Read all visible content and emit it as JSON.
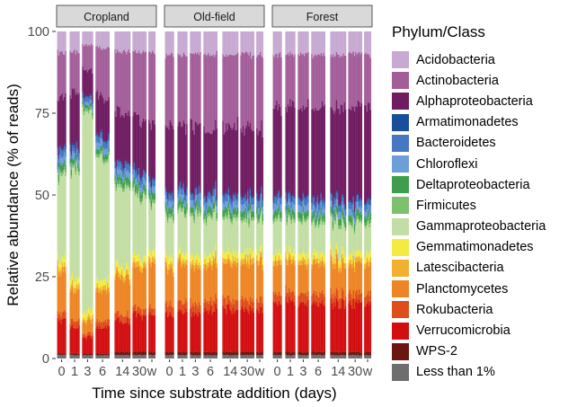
{
  "chart_data": {
    "type": "bar",
    "stacked": true,
    "facets": [
      "Cropland",
      "Old-field",
      "Forest"
    ],
    "xlabel": "Time since substrate addition (days)",
    "ylabel": "Relative abundance (% of reads)",
    "ylim": [
      0,
      100
    ],
    "yticks": [
      "0",
      "25",
      "50",
      "75",
      "100"
    ],
    "xtick_labels": [
      "0",
      "1",
      "3",
      "6",
      "14",
      "30",
      "w"
    ],
    "legend_title": "Phylum/Class",
    "legend_position": "right",
    "series": [
      {
        "name": "Acidobacteria",
        "color": "#C7A9D1"
      },
      {
        "name": "Actinobacteria",
        "color": "#A35E9A"
      },
      {
        "name": "Alphaproteobacteria",
        "color": "#701C62"
      },
      {
        "name": "Armatimonadetes",
        "color": "#1A4E9A"
      },
      {
        "name": "Bacteroidetes",
        "color": "#4577C3"
      },
      {
        "name": "Chloroflexi",
        "color": "#6D9ED9"
      },
      {
        "name": "Deltaproteobacteria",
        "color": "#3E9E4C"
      },
      {
        "name": "Firmicutes",
        "color": "#7DC06E"
      },
      {
        "name": "Gammaproteobacteria",
        "color": "#C3DEA4"
      },
      {
        "name": "Gemmatimonadetes",
        "color": "#F4EB42"
      },
      {
        "name": "Latescibacteria",
        "color": "#F1B12E"
      },
      {
        "name": "Planctomycetes",
        "color": "#EE8524"
      },
      {
        "name": "Rokubacteria",
        "color": "#DF4D1B"
      },
      {
        "name": "Verrucomicrobia",
        "color": "#D30E10"
      },
      {
        "name": "WPS-2",
        "color": "#6A1611"
      },
      {
        "name": "Less than 1%",
        "color": "#6E6E6E"
      }
    ],
    "groups": [
      {
        "facet": "Cropland",
        "time": "0",
        "values": [
          6,
          13,
          15,
          0.5,
          2,
          2,
          2,
          1,
          24,
          2,
          1.5,
          12,
          2,
          9,
          0.5,
          1
        ]
      },
      {
        "facet": "Cropland",
        "time": "1",
        "values": [
          6,
          12,
          16,
          0.5,
          2,
          2,
          1.5,
          1,
          32,
          2,
          1.5,
          9,
          2,
          8,
          0.5,
          1
        ]
      },
      {
        "facet": "Cropland",
        "time": "3",
        "values": [
          4,
          8,
          8,
          0.5,
          1.5,
          1,
          1,
          1,
          60,
          2,
          1,
          4,
          1,
          5,
          0.5,
          1
        ]
      },
      {
        "facet": "Cropland",
        "time": "6",
        "values": [
          5,
          15,
          12,
          0.5,
          2,
          2,
          1.5,
          1,
          36,
          2,
          1.5,
          9,
          2,
          8,
          0.5,
          1
        ]
      },
      {
        "facet": "Cropland",
        "time": "14",
        "values": [
          6,
          18,
          15,
          0.5,
          2,
          2,
          2,
          1,
          24,
          2,
          1.5,
          11,
          2,
          9,
          1,
          1
        ]
      },
      {
        "facet": "Cropland",
        "time": "30",
        "values": [
          6,
          20,
          16,
          0.5,
          2,
          2,
          2,
          1,
          18,
          2,
          1.5,
          12,
          2,
          11,
          1,
          1
        ]
      },
      {
        "facet": "Cropland",
        "time": "w",
        "values": [
          6,
          21,
          17,
          0.5,
          2,
          2,
          2,
          1,
          15,
          2,
          1.5,
          13,
          2,
          11,
          1,
          1
        ]
      },
      {
        "facet": "Old-field",
        "time": "0",
        "values": [
          7,
          21,
          20,
          0.5,
          2,
          2,
          2,
          1,
          12,
          2,
          1.5,
          11,
          3,
          12,
          1,
          1
        ]
      },
      {
        "facet": "Old-field",
        "time": "1",
        "values": [
          7,
          22,
          19,
          0.5,
          2,
          2,
          2,
          1,
          12,
          2,
          1.5,
          11,
          3,
          12,
          1,
          1
        ]
      },
      {
        "facet": "Old-field",
        "time": "3",
        "values": [
          7,
          22,
          20,
          0.5,
          2,
          2,
          2,
          1,
          12,
          2,
          1.5,
          11,
          3,
          12,
          1,
          1
        ]
      },
      {
        "facet": "Old-field",
        "time": "6",
        "values": [
          7,
          22,
          20,
          0.5,
          2,
          2,
          2,
          1,
          11,
          2,
          1.5,
          11,
          3,
          13,
          1,
          1
        ]
      },
      {
        "facet": "Old-field",
        "time": "14",
        "values": [
          7,
          22,
          21,
          0.5,
          2,
          2,
          2,
          1,
          10,
          2,
          1.5,
          11,
          3,
          13,
          1,
          1
        ]
      },
      {
        "facet": "Old-field",
        "time": "30",
        "values": [
          7,
          22,
          21,
          0.5,
          2,
          2,
          2,
          1,
          10,
          2,
          1.5,
          11,
          3,
          13,
          1,
          1
        ]
      },
      {
        "facet": "Old-field",
        "time": "w",
        "values": [
          7,
          22,
          21,
          0.5,
          2,
          2,
          2,
          1,
          10,
          2,
          1.5,
          11,
          3,
          13,
          1,
          1
        ]
      },
      {
        "facet": "Forest",
        "time": "0",
        "values": [
          7,
          16,
          27,
          0.5,
          2,
          2,
          2,
          1,
          10,
          2,
          1.5,
          9,
          3,
          15,
          1,
          1
        ]
      },
      {
        "facet": "Forest",
        "time": "1",
        "values": [
          7,
          16,
          27,
          0.5,
          2,
          2,
          2,
          1,
          10,
          2,
          1.5,
          9,
          3,
          15,
          1,
          1
        ]
      },
      {
        "facet": "Forest",
        "time": "3",
        "values": [
          7,
          16,
          27,
          0.5,
          2,
          2,
          2,
          1,
          10,
          2,
          1.5,
          9,
          3,
          15,
          1,
          1
        ]
      },
      {
        "facet": "Forest",
        "time": "6",
        "values": [
          7,
          16,
          28,
          0.5,
          2,
          2,
          2,
          1,
          9,
          2,
          1.5,
          9,
          3,
          15,
          1,
          1
        ]
      },
      {
        "facet": "Forest",
        "time": "14",
        "values": [
          7,
          16,
          28,
          0.5,
          2,
          2,
          2,
          1,
          9,
          2,
          1.5,
          9,
          3,
          15,
          1,
          1
        ]
      },
      {
        "facet": "Forest",
        "time": "30",
        "values": [
          7,
          16,
          28,
          0.5,
          2,
          2,
          2,
          1,
          9,
          2,
          1.5,
          9,
          3,
          15,
          1,
          1
        ]
      },
      {
        "facet": "Forest",
        "time": "w",
        "values": [
          7,
          16,
          28,
          0.5,
          2,
          2,
          2,
          1,
          9,
          2,
          1.5,
          9,
          3,
          15,
          1,
          1
        ]
      }
    ]
  }
}
